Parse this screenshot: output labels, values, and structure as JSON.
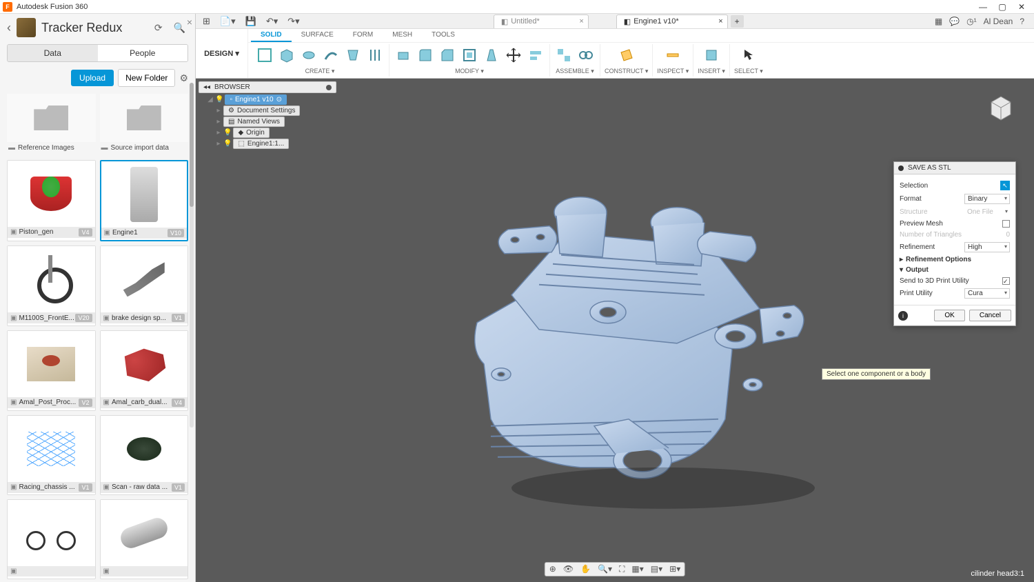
{
  "app": {
    "title": "Autodesk Fusion 360"
  },
  "user": {
    "name": "Al Dean"
  },
  "dataPanel": {
    "title": "Tracker Redux",
    "tabs": {
      "data": "Data",
      "people": "People"
    },
    "upload": "Upload",
    "newFolder": "New Folder",
    "folders": [
      {
        "name": "Reference Images"
      },
      {
        "name": "Source import data"
      }
    ],
    "items": [
      {
        "name": "Piston_gen",
        "ver": "V4",
        "thumb": "red-cyl"
      },
      {
        "name": "Engine1",
        "ver": "V10",
        "thumb": "gray",
        "selected": true
      },
      {
        "name": "M1100S_FrontE...",
        "ver": "V20",
        "thumb": "wheel"
      },
      {
        "name": "brake design sp...",
        "ver": "V1",
        "thumb": "lever"
      },
      {
        "name": "Amal_Post_Proc...",
        "ver": "V2",
        "thumb": "block"
      },
      {
        "name": "Amal_carb_dual...",
        "ver": "V4",
        "thumb": "manifold"
      },
      {
        "name": "Racing_chassis ...",
        "ver": "V1",
        "thumb": "wireframe"
      },
      {
        "name": "Scan - raw data ...",
        "ver": "V1",
        "thumb": "scan"
      },
      {
        "name": "",
        "ver": "",
        "thumb": "bike"
      },
      {
        "name": "",
        "ver": "",
        "thumb": "tube"
      }
    ]
  },
  "docTabs": {
    "untitled": "Untitled*",
    "engine": "Engine1 v10*"
  },
  "ribbon": {
    "design": "DESIGN ▾",
    "tabs": [
      "SOLID",
      "SURFACE",
      "FORM",
      "MESH",
      "TOOLS"
    ],
    "groups": {
      "create": "CREATE ▾",
      "modify": "MODIFY ▾",
      "assemble": "ASSEMBLE ▾",
      "construct": "CONSTRUCT ▾",
      "inspect": "INSPECT ▾",
      "insert": "INSERT ▾",
      "select": "SELECT ▾"
    }
  },
  "browser": {
    "title": "BROWSER",
    "root": "Engine1 v10",
    "items": [
      "Document Settings",
      "Named Views",
      "Origin",
      "Engine1:1..."
    ]
  },
  "stl": {
    "title": "SAVE AS STL",
    "selection": "Selection",
    "format": "Format",
    "formatVal": "Binary",
    "structure": "Structure",
    "structureVal": "One File",
    "previewMesh": "Preview Mesh",
    "numTriangles": "Number of Triangles",
    "numTrianglesVal": "0",
    "refinement": "Refinement",
    "refinementVal": "High",
    "refinementOptions": "Refinement Options",
    "output": "Output",
    "sendTo": "Send to 3D Print Utility",
    "printUtility": "Print Utility",
    "printUtilityVal": "Cura",
    "ok": "OK",
    "cancel": "Cancel"
  },
  "tooltip": "Select one component or a body",
  "status": "cilinder head3:1"
}
